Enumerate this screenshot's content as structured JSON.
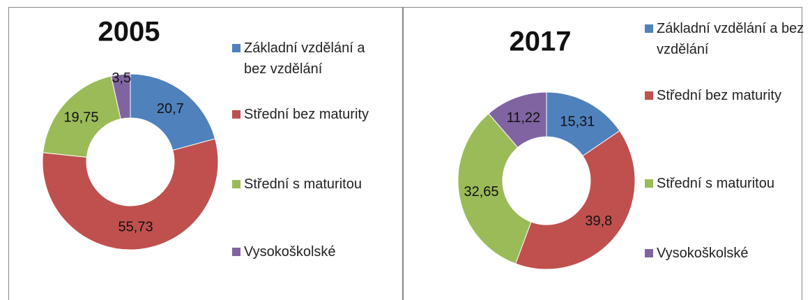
{
  "chart_data": [
    {
      "type": "donut",
      "title": "2005",
      "categories": [
        "Základní vzdělání a bez vzdělání",
        "Střední bez maturity",
        "Střední s maturitou",
        "Vysokoškolské"
      ],
      "values": [
        20.7,
        55.73,
        19.75,
        3.5
      ],
      "value_labels": [
        "20,7",
        "55,73",
        "19,75",
        "3,5"
      ],
      "colors": [
        "#4f81bd",
        "#c0504d",
        "#9bbb59",
        "#8064a2"
      ],
      "legend": "right"
    },
    {
      "type": "donut",
      "title": "2017",
      "categories": [
        "Základní vzdělání a bez vzdělání",
        "Střední bez maturity",
        "Střední s maturitou",
        "Vysokoškolské"
      ],
      "values": [
        15.31,
        39.8,
        32.65,
        11.22
      ],
      "value_labels": [
        "15,31",
        "39,8",
        "32,65",
        "11,22"
      ],
      "colors": [
        "#4f81bd",
        "#c0504d",
        "#9bbb59",
        "#8064a2"
      ],
      "legend": "right"
    }
  ]
}
